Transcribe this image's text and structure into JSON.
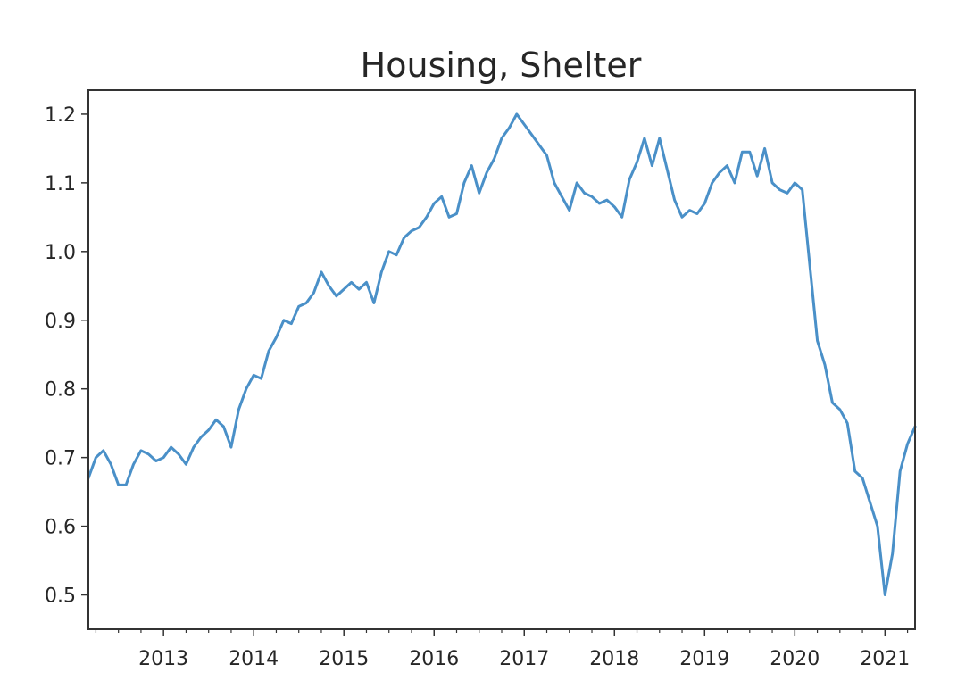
{
  "chart_data": {
    "type": "line",
    "title": "Housing, Shelter",
    "xlabel": "",
    "ylabel": "",
    "xlim": [
      "2012-03",
      "2021-05"
    ],
    "ylim": [
      0.45,
      1.235
    ],
    "x_ticks": [
      "2013",
      "2014",
      "2015",
      "2016",
      "2017",
      "2018",
      "2019",
      "2020",
      "2021"
    ],
    "y_ticks": [
      "0.5",
      "0.6",
      "0.7",
      "0.8",
      "0.9",
      "1.0",
      "1.1",
      "1.2"
    ],
    "grid": false,
    "legend": "none",
    "colors": {
      "line": "#4a90c8",
      "axes": "#333333",
      "text": "#262626"
    },
    "series": [
      {
        "x": [
          "2012-03",
          "2012-04",
          "2012-05",
          "2012-06",
          "2012-07",
          "2012-08",
          "2012-09",
          "2012-10",
          "2012-11",
          "2012-12",
          "2013-01",
          "2013-02",
          "2013-03",
          "2013-04",
          "2013-05",
          "2013-06",
          "2013-07",
          "2013-08",
          "2013-09",
          "2013-10",
          "2013-11",
          "2013-12",
          "2014-01",
          "2014-02",
          "2014-03",
          "2014-04",
          "2014-05",
          "2014-06",
          "2014-07",
          "2014-08",
          "2014-09",
          "2014-10",
          "2014-11",
          "2014-12",
          "2015-01",
          "2015-02",
          "2015-03",
          "2015-04",
          "2015-05",
          "2015-06",
          "2015-07",
          "2015-08",
          "2015-09",
          "2015-10",
          "2015-11",
          "2015-12",
          "2016-01",
          "2016-02",
          "2016-03",
          "2016-04",
          "2016-05",
          "2016-06",
          "2016-07",
          "2016-08",
          "2016-09",
          "2016-10",
          "2016-11",
          "2016-12",
          "2017-01",
          "2017-02",
          "2017-03",
          "2017-04",
          "2017-05",
          "2017-06",
          "2017-07",
          "2017-08",
          "2017-09",
          "2017-10",
          "2017-11",
          "2017-12",
          "2018-01",
          "2018-02",
          "2018-03",
          "2018-04",
          "2018-05",
          "2018-06",
          "2018-07",
          "2018-08",
          "2018-09",
          "2018-10",
          "2018-11",
          "2018-12",
          "2019-01",
          "2019-02",
          "2019-03",
          "2019-04",
          "2019-05",
          "2019-06",
          "2019-07",
          "2019-08",
          "2019-09",
          "2019-10",
          "2019-11",
          "2019-12",
          "2020-01",
          "2020-02",
          "2020-03",
          "2020-04",
          "2020-05",
          "2020-06",
          "2020-07",
          "2020-08",
          "2020-09",
          "2020-10",
          "2020-11",
          "2020-12",
          "2021-01",
          "2021-02",
          "2021-03",
          "2021-04",
          "2021-05"
        ],
        "values": [
          0.67,
          0.7,
          0.71,
          0.69,
          0.66,
          0.66,
          0.69,
          0.71,
          0.705,
          0.695,
          0.7,
          0.715,
          0.705,
          0.69,
          0.715,
          0.73,
          0.74,
          0.755,
          0.745,
          0.715,
          0.77,
          0.8,
          0.82,
          0.815,
          0.855,
          0.875,
          0.9,
          0.895,
          0.92,
          0.925,
          0.94,
          0.97,
          0.95,
          0.935,
          0.945,
          0.955,
          0.945,
          0.955,
          0.925,
          0.97,
          1.0,
          0.995,
          1.02,
          1.03,
          1.035,
          1.05,
          1.07,
          1.08,
          1.05,
          1.055,
          1.1,
          1.125,
          1.085,
          1.115,
          1.135,
          1.165,
          1.18,
          1.2,
          1.185,
          1.17,
          1.155,
          1.14,
          1.1,
          1.08,
          1.06,
          1.1,
          1.085,
          1.08,
          1.07,
          1.075,
          1.065,
          1.05,
          1.105,
          1.13,
          1.165,
          1.125,
          1.165,
          1.12,
          1.075,
          1.05,
          1.06,
          1.055,
          1.07,
          1.1,
          1.115,
          1.125,
          1.1,
          1.145,
          1.145,
          1.11,
          1.15,
          1.1,
          1.09,
          1.085,
          1.1,
          1.09,
          0.98,
          0.87,
          0.835,
          0.78,
          0.77,
          0.75,
          0.68,
          0.67,
          0.635,
          0.6,
          0.5,
          0.56,
          0.68,
          0.72,
          0.745
        ]
      }
    ]
  }
}
